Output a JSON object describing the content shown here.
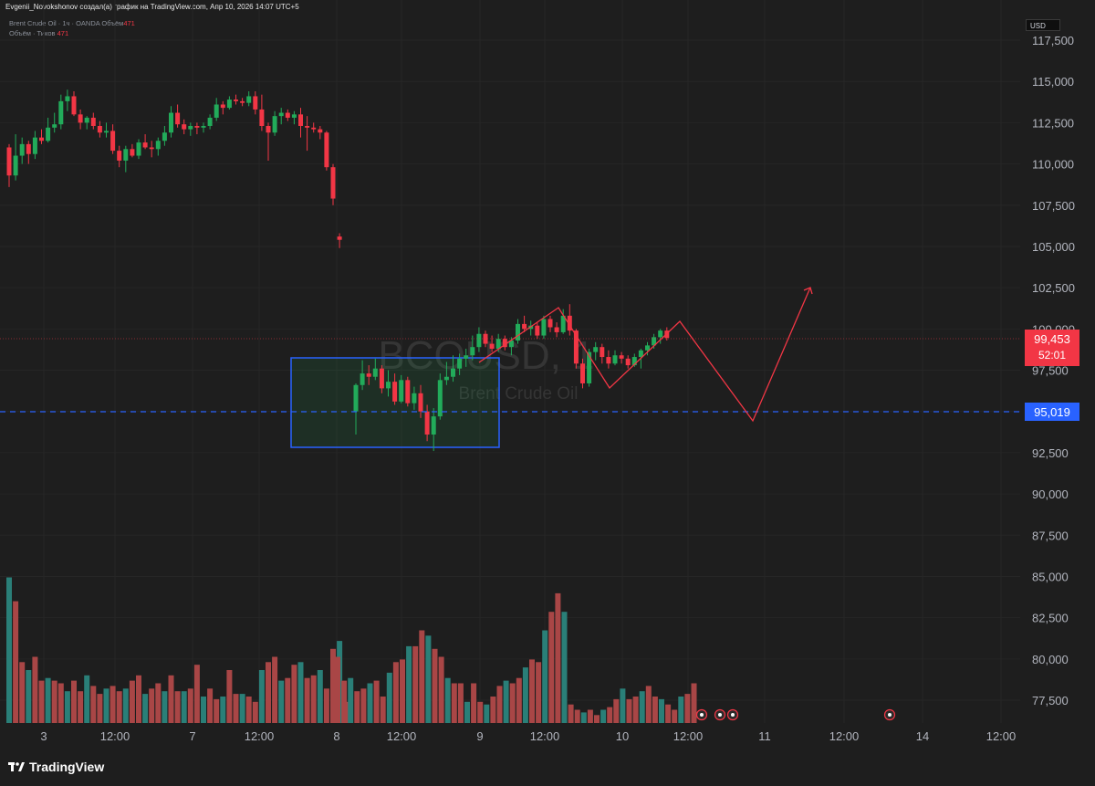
{
  "header": {
    "attribution": "Evgenii_Novokshonov создал(а) график на TradingView.com, Апр 10, 2026 14:07 UTC+5",
    "legend_line1": "Brent Crude Oil · 1ч · OANDA  Объём",
    "legend_line1_value": "471",
    "legend_line2": "Объём · Тиков",
    "legend_line2_value": "471",
    "currency": "USD"
  },
  "watermark": {
    "symbol": "BCOUSD, 1",
    "name": "Brent Crude Oil"
  },
  "price_labels": {
    "last_price": "99,453",
    "countdown": "52:01",
    "level": "95,019"
  },
  "colors": {
    "up": "#22ab5a",
    "down": "#f23645",
    "vol_up": "#2a7f78",
    "vol_down": "#a94646",
    "level": "#2962ff",
    "drawing": "#f23645"
  },
  "footer": {
    "brand": "TradingView"
  },
  "chart_data": {
    "type": "candlestick",
    "y_axis": {
      "ticks": [
        "117,500",
        "115,000",
        "112,500",
        "110,000",
        "107,500",
        "105,000",
        "102,500",
        "100,000",
        "97,500",
        "95,000",
        "92,500",
        "90,000",
        "87,500",
        "85,000",
        "82,500",
        "80,000",
        "77,500"
      ],
      "ylim": [
        76200,
        118000
      ]
    },
    "x_axis": {
      "ticks": [
        "3",
        "12:00",
        "7",
        "12:00",
        "8",
        "12:00",
        "9",
        "12:00",
        "10",
        "12:00",
        "11",
        "12:00",
        "14",
        "12:00"
      ]
    },
    "candles_1": [
      [
        111000,
        111200,
        108600,
        109300
      ],
      [
        109300,
        111800,
        109000,
        110500
      ],
      [
        110500,
        111600,
        110000,
        111200
      ],
      [
        111200,
        111400,
        110000,
        110600
      ],
      [
        110600,
        112000,
        110300,
        111600
      ],
      [
        111600,
        112100,
        111200,
        111400
      ],
      [
        111400,
        112800,
        111300,
        112200
      ],
      [
        112200,
        113100,
        111900,
        112400
      ],
      [
        112400,
        114200,
        112100,
        113800
      ],
      [
        113800,
        114500,
        113200,
        114100
      ],
      [
        114100,
        114400,
        112900,
        113000
      ],
      [
        113000,
        113300,
        112100,
        112500
      ],
      [
        112500,
        112900,
        112100,
        112800
      ],
      [
        112800,
        113100,
        112100,
        112300
      ],
      [
        112300,
        112600,
        111600,
        111900
      ],
      [
        111900,
        112500,
        111600,
        112000
      ],
      [
        112000,
        112400,
        110600,
        110800
      ],
      [
        110800,
        111100,
        109800,
        110200
      ],
      [
        110200,
        111100,
        109500,
        110900
      ],
      [
        110900,
        111200,
        110400,
        110500
      ],
      [
        110500,
        111500,
        110300,
        111300
      ],
      [
        111300,
        111800,
        110900,
        111000
      ],
      [
        111000,
        111400,
        110400,
        110900
      ],
      [
        110900,
        111600,
        110500,
        111400
      ],
      [
        111400,
        112300,
        111100,
        111900
      ],
      [
        111900,
        113500,
        111600,
        113100
      ],
      [
        113100,
        113600,
        112200,
        112400
      ],
      [
        112400,
        112700,
        111800,
        112100
      ],
      [
        112100,
        112500,
        111700,
        112300
      ],
      [
        112300,
        112500,
        111800,
        112200
      ],
      [
        112200,
        112500,
        111900,
        112300
      ],
      [
        112300,
        113000,
        112100,
        112800
      ],
      [
        112800,
        114000,
        112600,
        113600
      ],
      [
        113600,
        113800,
        113000,
        113400
      ],
      [
        113400,
        114100,
        113300,
        113900
      ],
      [
        113900,
        114200,
        113600,
        113800
      ],
      [
        113800,
        114000,
        113500,
        113700
      ],
      [
        113700,
        114400,
        113500,
        114100
      ],
      [
        114100,
        114400,
        113000,
        113300
      ],
      [
        113300,
        114200,
        112000,
        112300
      ],
      [
        112300,
        112500,
        110200,
        111900
      ],
      [
        111900,
        113200,
        111700,
        112900
      ],
      [
        112900,
        113400,
        112400,
        113100
      ],
      [
        113100,
        113300,
        112600,
        112800
      ],
      [
        112800,
        113200,
        112400,
        113000
      ],
      [
        113000,
        113400,
        111600,
        112300
      ],
      [
        112300,
        112900,
        110800,
        112200
      ],
      [
        112200,
        112500,
        111900,
        112100
      ],
      [
        112100,
        112300,
        111500,
        111900
      ],
      [
        111900,
        112000,
        109600,
        109800
      ],
      [
        109800,
        110000,
        107500,
        107900
      ],
      [
        105600,
        105800,
        104900,
        105400
      ]
    ],
    "candles_2": [
      [
        95000,
        96700,
        93600,
        96600
      ],
      [
        96600,
        98100,
        96300,
        97300
      ],
      [
        97300,
        97800,
        96600,
        97100
      ],
      [
        97100,
        98200,
        96900,
        97600
      ],
      [
        97600,
        97800,
        96100,
        96400
      ],
      [
        96400,
        97500,
        95900,
        96800
      ],
      [
        96800,
        97300,
        95400,
        95600
      ],
      [
        95600,
        97200,
        95500,
        96900
      ],
      [
        96900,
        97100,
        95300,
        95500
      ],
      [
        95500,
        96500,
        95100,
        96100
      ],
      [
        96100,
        96600,
        94600,
        95000
      ],
      [
        95000,
        95400,
        93200,
        93600
      ],
      [
        93600,
        95200,
        92600,
        94700
      ],
      [
        94700,
        97300,
        94500,
        96900
      ],
      [
        96900,
        98000,
        96600,
        97100
      ],
      [
        97100,
        98400,
        96800,
        97600
      ],
      [
        97600,
        98500,
        97200,
        98200
      ],
      [
        98200,
        98800,
        97700,
        98400
      ],
      [
        98400,
        99600,
        98100,
        98900
      ],
      [
        98900,
        100100,
        98600,
        99700
      ],
      [
        99700,
        99900,
        98900,
        99100
      ],
      [
        99100,
        99600,
        98600,
        98800
      ],
      [
        98800,
        99700,
        98600,
        99400
      ],
      [
        99400,
        99600,
        98700,
        98900
      ],
      [
        98900,
        99500,
        98400,
        99300
      ],
      [
        99300,
        100600,
        99100,
        100300
      ],
      [
        100300,
        100800,
        99800,
        100000
      ],
      [
        100000,
        100500,
        99600,
        100200
      ],
      [
        100200,
        100400,
        99400,
        99600
      ],
      [
        99600,
        100800,
        99400,
        100600
      ],
      [
        100600,
        100800,
        99800,
        100100
      ],
      [
        100100,
        100400,
        99500,
        99800
      ],
      [
        99800,
        101200,
        99700,
        100800
      ],
      [
        100800,
        101500,
        99600,
        99900
      ],
      [
        99900,
        100000,
        97600,
        97900
      ],
      [
        97900,
        98200,
        96400,
        96700
      ],
      [
        96700,
        98800,
        96500,
        98600
      ],
      [
        98600,
        99200,
        98100,
        98900
      ],
      [
        98900,
        99100,
        97900,
        98300
      ],
      [
        98300,
        98700,
        97600,
        97900
      ],
      [
        97900,
        98700,
        97800,
        98400
      ],
      [
        98400,
        98600,
        97900,
        98200
      ],
      [
        98200,
        98400,
        97600,
        97800
      ],
      [
        97800,
        98500,
        97700,
        98300
      ],
      [
        98300,
        98800,
        97600,
        98700
      ],
      [
        98700,
        99200,
        98400,
        99000
      ],
      [
        99000,
        99700,
        98800,
        99500
      ],
      [
        99500,
        100000,
        99100,
        99900
      ],
      [
        99900,
        100100,
        99300,
        99453
      ]
    ],
    "volume_1": [
      55,
      46,
      23,
      20,
      25,
      16,
      17,
      16,
      15,
      12,
      16,
      12,
      18,
      14,
      11,
      13,
      14,
      12,
      13,
      16,
      18,
      11,
      13,
      15,
      12,
      18,
      12,
      12,
      13,
      22,
      10,
      13,
      9,
      10,
      20,
      11,
      11,
      10,
      8,
      20,
      23,
      25,
      16,
      17,
      22,
      23,
      17,
      18,
      20,
      13,
      28,
      31,
      8
    ],
    "volume_2": [
      25,
      16,
      17,
      12,
      13,
      15,
      16,
      10,
      19,
      23,
      24,
      29,
      29,
      35,
      33,
      28,
      25,
      17,
      15,
      15,
      8,
      15,
      8,
      7,
      10,
      14,
      16,
      15,
      17,
      21,
      24,
      23,
      35,
      42,
      49,
      42,
      7,
      5,
      4,
      5,
      3,
      5,
      6,
      9,
      13,
      9,
      10,
      12,
      14,
      10,
      9,
      7,
      5,
      10,
      11,
      15
    ]
  }
}
